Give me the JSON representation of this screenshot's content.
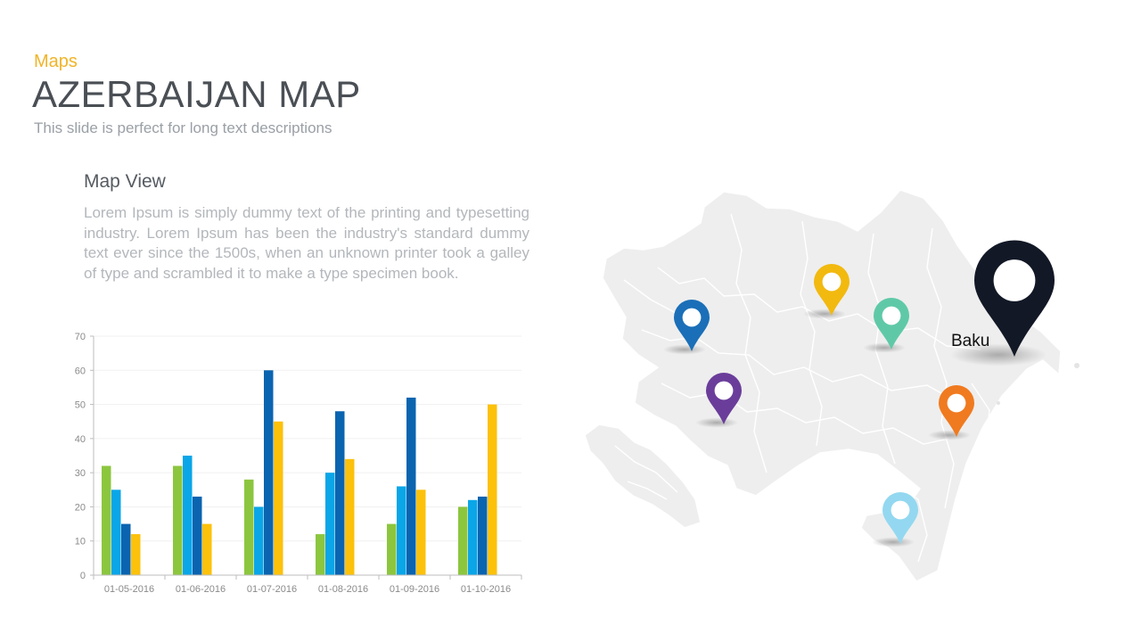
{
  "header": {
    "kicker": "Maps",
    "title": "AZERBAIJAN MAP",
    "subtitle": "This slide is perfect for long text descriptions"
  },
  "content": {
    "section_title": "Map View",
    "body": "Lorem Ipsum is simply dummy text of the printing and typesetting industry. Lorem Ipsum has been the industry's standard dummy text ever since the 1500s, when an unknown printer took a galley of type and scrambled it to make a type specimen book."
  },
  "map": {
    "city_label": "Baku",
    "pin_colors": [
      "#1a6fb8",
      "#f2b90f",
      "#5fc9a7",
      "#6a3d9a",
      "#f07a1f",
      "#93d8f0",
      "#121826"
    ]
  },
  "chart_data": {
    "type": "bar",
    "categories": [
      "01-05-2016",
      "01-06-2016",
      "01-07-2016",
      "01-08-2016",
      "01-09-2016",
      "01-10-2016"
    ],
    "series": [
      {
        "values": [
          32,
          32,
          28,
          12,
          15,
          20
        ],
        "color": "#8cc63f"
      },
      {
        "values": [
          25,
          35,
          20,
          30,
          26,
          22
        ],
        "color": "#0aa6e8"
      },
      {
        "values": [
          15,
          23,
          60,
          48,
          52,
          23
        ],
        "color": "#0b64b0"
      },
      {
        "values": [
          12,
          15,
          45,
          34,
          25,
          50
        ],
        "color": "#fcc10b"
      }
    ],
    "ylim": [
      0,
      70
    ],
    "yticks": [
      0,
      10,
      20,
      30,
      40,
      50,
      60,
      70
    ],
    "grid": true,
    "legend": "none"
  }
}
